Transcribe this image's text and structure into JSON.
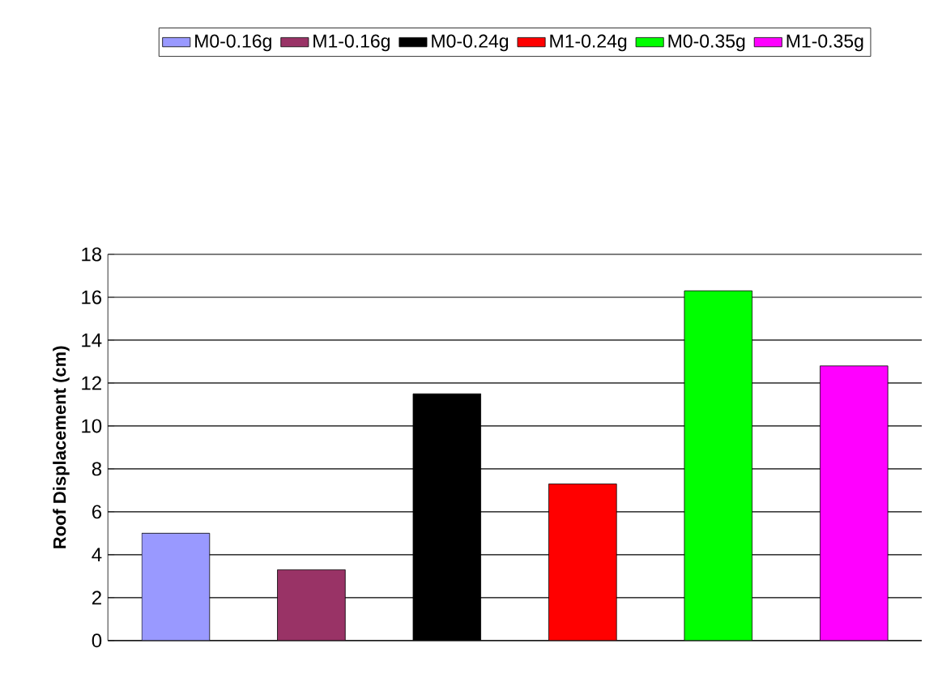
{
  "chart_data": {
    "type": "bar",
    "ylabel": "Roof Displacement (cm)",
    "categories": [
      null
    ],
    "series": [
      {
        "name": "M0-0.16g",
        "color": "#9999ff",
        "values": [
          5.0
        ]
      },
      {
        "name": "M1-0.16g",
        "color": "#993366",
        "values": [
          3.3
        ]
      },
      {
        "name": "M0-0.24g",
        "color": "#000000",
        "values": [
          11.5
        ]
      },
      {
        "name": "M1-0.24g",
        "color": "#ff0000",
        "values": [
          7.3
        ]
      },
      {
        "name": "M0-0.35g",
        "color": "#00ff00",
        "values": [
          16.3
        ]
      },
      {
        "name": "M1-0.35g",
        "color": "#ff00ff",
        "values": [
          12.8
        ]
      }
    ],
    "ylim": [
      0,
      18
    ],
    "yticks": [
      0,
      2,
      4,
      6,
      8,
      10,
      12,
      14,
      16,
      18
    ],
    "grid": "y",
    "legend": "top"
  }
}
